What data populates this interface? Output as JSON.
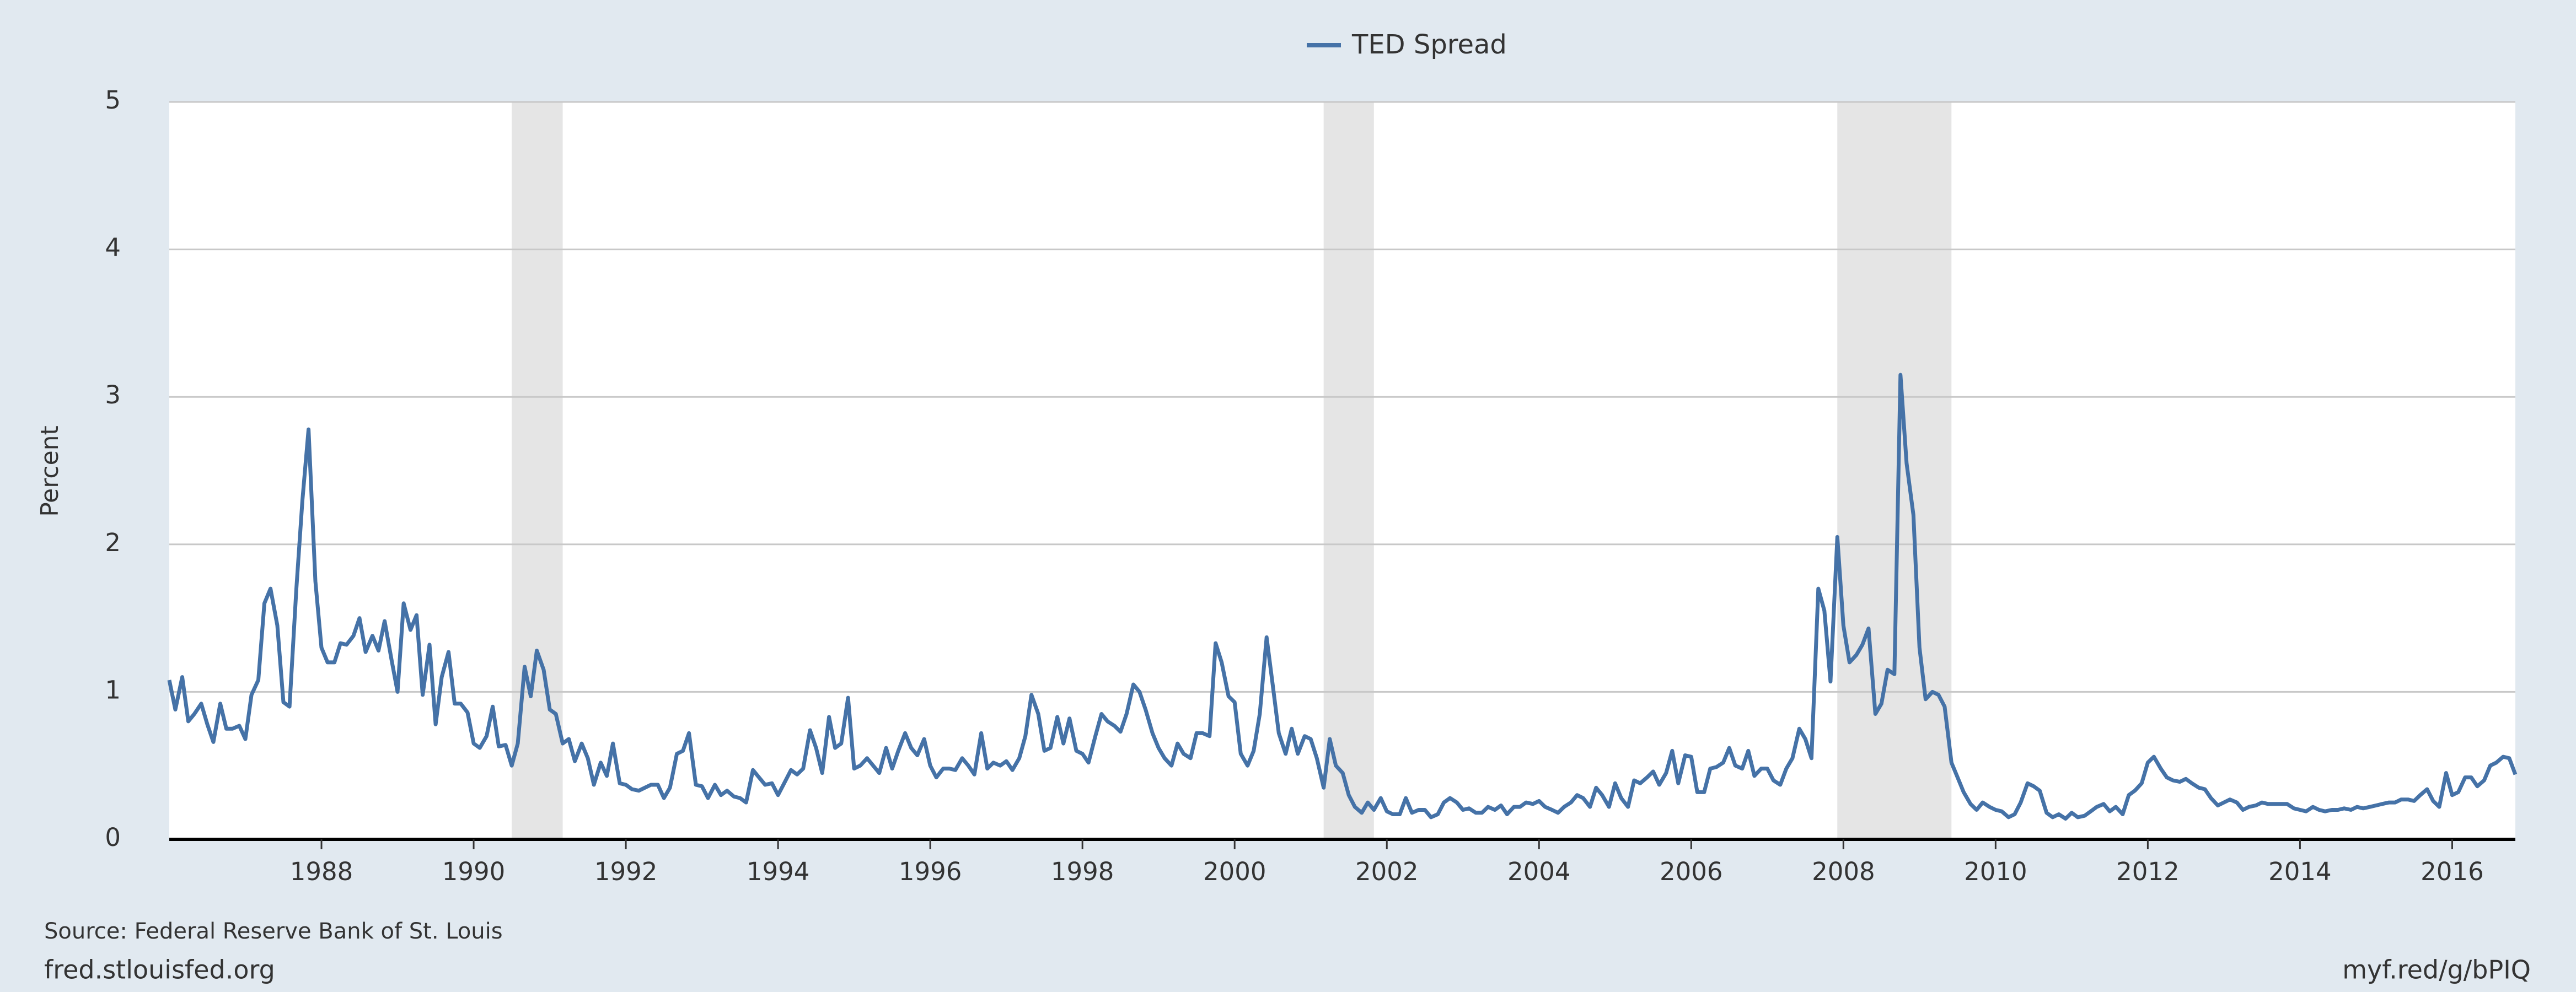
{
  "chart_data": {
    "type": "line",
    "ylabel": "Percent",
    "source": "Source: Federal Reserve Bank of St. Louis",
    "site": "fred.stlouisfed.org",
    "link": "myf.red/g/bPIQ",
    "xlim": [
      1986,
      2016.83
    ],
    "ylim": [
      0,
      5
    ],
    "xticks": [
      1988,
      1990,
      1992,
      1994,
      1996,
      1998,
      2000,
      2002,
      2004,
      2006,
      2008,
      2010,
      2012,
      2014,
      2016
    ],
    "yticks": [
      0,
      1,
      2,
      3,
      4,
      5
    ],
    "grid": true,
    "recessions": [
      [
        1990.5,
        1991.17
      ],
      [
        2001.17,
        2001.83
      ],
      [
        2007.92,
        2009.42
      ]
    ],
    "recession_color": "#e5e5e5",
    "x": [
      1986,
      1986.08,
      1986.17,
      1986.25,
      1986.33,
      1986.42,
      1986.5,
      1986.58,
      1986.67,
      1986.75,
      1986.83,
      1986.92,
      1987,
      1987.08,
      1987.17,
      1987.25,
      1987.33,
      1987.42,
      1987.5,
      1987.58,
      1987.67,
      1987.75,
      1987.83,
      1987.92,
      1988,
      1988.08,
      1988.17,
      1988.25,
      1988.33,
      1988.42,
      1988.5,
      1988.58,
      1988.67,
      1988.75,
      1988.83,
      1988.92,
      1989,
      1989.08,
      1989.17,
      1989.25,
      1989.33,
      1989.42,
      1989.5,
      1989.58,
      1989.67,
      1989.75,
      1989.83,
      1989.92,
      1990,
      1990.08,
      1990.17,
      1990.25,
      1990.33,
      1990.42,
      1990.5,
      1990.58,
      1990.67,
      1990.75,
      1990.83,
      1990.92,
      1991,
      1991.08,
      1991.17,
      1991.25,
      1991.33,
      1991.42,
      1991.5,
      1991.58,
      1991.67,
      1991.75,
      1991.83,
      1991.92,
      1992,
      1992.08,
      1992.17,
      1992.25,
      1992.33,
      1992.42,
      1992.5,
      1992.58,
      1992.67,
      1992.75,
      1992.83,
      1992.92,
      1993,
      1993.08,
      1993.17,
      1993.25,
      1993.33,
      1993.42,
      1993.5,
      1993.58,
      1993.67,
      1993.75,
      1993.83,
      1993.92,
      1994,
      1994.08,
      1994.17,
      1994.25,
      1994.33,
      1994.42,
      1994.5,
      1994.58,
      1994.67,
      1994.75,
      1994.83,
      1994.92,
      1995,
      1995.08,
      1995.17,
      1995.25,
      1995.33,
      1995.42,
      1995.5,
      1995.58,
      1995.67,
      1995.75,
      1995.83,
      1995.92,
      1996,
      1996.08,
      1996.17,
      1996.25,
      1996.33,
      1996.42,
      1996.5,
      1996.58,
      1996.67,
      1996.75,
      1996.83,
      1996.92,
      1997,
      1997.08,
      1997.17,
      1997.25,
      1997.33,
      1997.42,
      1997.5,
      1997.58,
      1997.67,
      1997.75,
      1997.83,
      1997.92,
      1998,
      1998.08,
      1998.17,
      1998.25,
      1998.33,
      1998.42,
      1998.5,
      1998.58,
      1998.67,
      1998.75,
      1998.83,
      1998.92,
      1999,
      1999.08,
      1999.17,
      1999.25,
      1999.33,
      1999.42,
      1999.5,
      1999.58,
      1999.67,
      1999.75,
      1999.83,
      1999.92,
      2000,
      2000.08,
      2000.17,
      2000.25,
      2000.33,
      2000.42,
      2000.5,
      2000.58,
      2000.67,
      2000.75,
      2000.83,
      2000.92,
      2001,
      2001.08,
      2001.17,
      2001.25,
      2001.33,
      2001.42,
      2001.5,
      2001.58,
      2001.67,
      2001.75,
      2001.83,
      2001.92,
      2002,
      2002.08,
      2002.17,
      2002.25,
      2002.33,
      2002.42,
      2002.5,
      2002.58,
      2002.67,
      2002.75,
      2002.83,
      2002.92,
      2003,
      2003.08,
      2003.17,
      2003.25,
      2003.33,
      2003.42,
      2003.5,
      2003.58,
      2003.67,
      2003.75,
      2003.83,
      2003.92,
      2004,
      2004.08,
      2004.17,
      2004.25,
      2004.33,
      2004.42,
      2004.5,
      2004.58,
      2004.67,
      2004.75,
      2004.83,
      2004.92,
      2005,
      2005.08,
      2005.17,
      2005.25,
      2005.33,
      2005.42,
      2005.5,
      2005.58,
      2005.67,
      2005.75,
      2005.83,
      2005.92,
      2006,
      2006.08,
      2006.17,
      2006.25,
      2006.33,
      2006.42,
      2006.5,
      2006.58,
      2006.67,
      2006.75,
      2006.83,
      2006.92,
      2007,
      2007.08,
      2007.17,
      2007.25,
      2007.33,
      2007.42,
      2007.5,
      2007.58,
      2007.67,
      2007.75,
      2007.83,
      2007.92,
      2008,
      2008.08,
      2008.17,
      2008.25,
      2008.33,
      2008.42,
      2008.5,
      2008.58,
      2008.67,
      2008.75,
      2008.83,
      2008.92,
      2009,
      2009.08,
      2009.17,
      2009.25,
      2009.33,
      2009.42,
      2009.5,
      2009.58,
      2009.67,
      2009.75,
      2009.83,
      2009.92,
      2010,
      2010.08,
      2010.17,
      2010.25,
      2010.33,
      2010.42,
      2010.5,
      2010.58,
      2010.67,
      2010.75,
      2010.83,
      2010.92,
      2011,
      2011.08,
      2011.17,
      2011.25,
      2011.33,
      2011.42,
      2011.5,
      2011.58,
      2011.67,
      2011.75,
      2011.83,
      2011.92,
      2012,
      2012.08,
      2012.17,
      2012.25,
      2012.33,
      2012.42,
      2012.5,
      2012.58,
      2012.67,
      2012.75,
      2012.83,
      2012.92,
      2013,
      2013.08,
      2013.17,
      2013.25,
      2013.33,
      2013.42,
      2013.5,
      2013.58,
      2013.67,
      2013.75,
      2013.83,
      2013.92,
      2014,
      2014.08,
      2014.17,
      2014.25,
      2014.33,
      2014.42,
      2014.5,
      2014.58,
      2014.67,
      2014.75,
      2014.83,
      2014.92,
      2015,
      2015.08,
      2015.17,
      2015.25,
      2015.33,
      2015.42,
      2015.5,
      2015.58,
      2015.67,
      2015.75,
      2015.83,
      2015.92,
      2016,
      2016.08,
      2016.17,
      2016.25,
      2016.33,
      2016.42,
      2016.5,
      2016.58,
      2016.67,
      2016.75,
      2016.83
    ],
    "series": [
      {
        "name": "TED Spread",
        "color": "#4572a7",
        "values": [
          1.08,
          0.88,
          1.1,
          0.8,
          0.85,
          0.92,
          0.78,
          0.66,
          0.92,
          0.75,
          0.75,
          0.77,
          0.68,
          0.98,
          1.08,
          1.6,
          1.7,
          1.45,
          0.93,
          0.9,
          1.7,
          2.3,
          2.78,
          1.75,
          1.3,
          1.2,
          1.2,
          1.33,
          1.32,
          1.38,
          1.5,
          1.27,
          1.38,
          1.28,
          1.48,
          1.22,
          1.0,
          1.6,
          1.42,
          1.52,
          0.98,
          1.32,
          0.78,
          1.1,
          1.27,
          0.92,
          0.92,
          0.86,
          0.65,
          0.62,
          0.7,
          0.9,
          0.63,
          0.64,
          0.5,
          0.65,
          1.17,
          0.97,
          1.28,
          1.15,
          0.88,
          0.85,
          0.65,
          0.68,
          0.53,
          0.65,
          0.55,
          0.37,
          0.52,
          0.43,
          0.65,
          0.38,
          0.37,
          0.34,
          0.33,
          0.35,
          0.37,
          0.37,
          0.28,
          0.35,
          0.58,
          0.6,
          0.72,
          0.37,
          0.36,
          0.28,
          0.37,
          0.3,
          0.33,
          0.29,
          0.28,
          0.25,
          0.47,
          0.42,
          0.37,
          0.38,
          0.3,
          0.38,
          0.47,
          0.44,
          0.48,
          0.74,
          0.62,
          0.45,
          0.83,
          0.62,
          0.65,
          0.96,
          0.48,
          0.5,
          0.55,
          0.5,
          0.45,
          0.62,
          0.48,
          0.6,
          0.72,
          0.62,
          0.57,
          0.68,
          0.5,
          0.42,
          0.48,
          0.48,
          0.47,
          0.55,
          0.5,
          0.44,
          0.72,
          0.48,
          0.52,
          0.5,
          0.53,
          0.47,
          0.55,
          0.7,
          0.98,
          0.85,
          0.6,
          0.62,
          0.83,
          0.65,
          0.82,
          0.6,
          0.58,
          0.52,
          0.7,
          0.85,
          0.8,
          0.77,
          0.73,
          0.85,
          1.05,
          1.0,
          0.88,
          0.72,
          0.62,
          0.55,
          0.5,
          0.65,
          0.58,
          0.55,
          0.72,
          0.72,
          0.7,
          1.33,
          1.2,
          0.97,
          0.93,
          0.58,
          0.5,
          0.6,
          0.85,
          1.37,
          1.05,
          0.72,
          0.58,
          0.75,
          0.58,
          0.7,
          0.68,
          0.55,
          0.35,
          0.68,
          0.5,
          0.45,
          0.3,
          0.22,
          0.18,
          0.25,
          0.2,
          0.28,
          0.19,
          0.17,
          0.17,
          0.28,
          0.18,
          0.2,
          0.2,
          0.15,
          0.17,
          0.25,
          0.28,
          0.25,
          0.2,
          0.21,
          0.18,
          0.18,
          0.22,
          0.2,
          0.23,
          0.17,
          0.22,
          0.22,
          0.25,
          0.24,
          0.26,
          0.22,
          0.2,
          0.18,
          0.22,
          0.25,
          0.3,
          0.28,
          0.22,
          0.35,
          0.3,
          0.22,
          0.38,
          0.28,
          0.22,
          0.4,
          0.38,
          0.42,
          0.46,
          0.37,
          0.45,
          0.6,
          0.38,
          0.57,
          0.56,
          0.32,
          0.32,
          0.48,
          0.49,
          0.52,
          0.62,
          0.5,
          0.48,
          0.6,
          0.43,
          0.48,
          0.48,
          0.4,
          0.37,
          0.48,
          0.55,
          0.75,
          0.68,
          0.55,
          1.7,
          1.55,
          1.07,
          2.05,
          1.45,
          1.2,
          1.25,
          1.32,
          1.43,
          0.85,
          0.92,
          1.15,
          1.12,
          3.15,
          2.55,
          2.2,
          1.3,
          0.95,
          1.0,
          0.98,
          0.9,
          0.52,
          0.42,
          0.32,
          0.24,
          0.2,
          0.25,
          0.22,
          0.2,
          0.19,
          0.15,
          0.17,
          0.25,
          0.38,
          0.36,
          0.33,
          0.18,
          0.15,
          0.17,
          0.14,
          0.18,
          0.15,
          0.16,
          0.19,
          0.22,
          0.24,
          0.19,
          0.22,
          0.17,
          0.3,
          0.33,
          0.38,
          0.52,
          0.56,
          0.48,
          0.42,
          0.4,
          0.39,
          0.41,
          0.38,
          0.35,
          0.34,
          0.28,
          0.23,
          0.25,
          0.27,
          0.25,
          0.2,
          0.22,
          0.23,
          0.25,
          0.24,
          0.24,
          0.24,
          0.24,
          0.21,
          0.2,
          0.19,
          0.22,
          0.2,
          0.19,
          0.2,
          0.2,
          0.21,
          0.2,
          0.22,
          0.21,
          0.22,
          0.23,
          0.24,
          0.25,
          0.25,
          0.27,
          0.27,
          0.26,
          0.3,
          0.34,
          0.26,
          0.22,
          0.45,
          0.3,
          0.32,
          0.42,
          0.42,
          0.36,
          0.4,
          0.5,
          0.52,
          0.56,
          0.55,
          0.44
        ]
      }
    ]
  }
}
